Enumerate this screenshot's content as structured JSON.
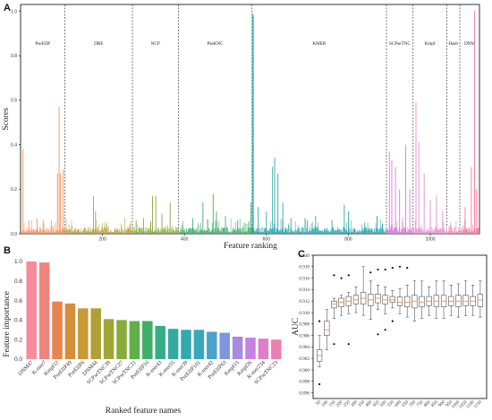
{
  "chart_data": [
    {
      "id": "A",
      "type": "bar",
      "panel_label": "A",
      "xlabel": "Feature ranking",
      "ylabel": "Scores",
      "xlim": [
        0,
        1120
      ],
      "ylim": [
        0,
        1.03
      ],
      "xticks": [
        200,
        400,
        600,
        800,
        1000
      ],
      "yticks": [
        0.0,
        0.2,
        0.4,
        0.6,
        0.8,
        1.0
      ],
      "regions": [
        {
          "name": "PseEIIP",
          "start": 0,
          "end": 108,
          "color": "#f3925a"
        },
        {
          "name": "DBE",
          "start": 108,
          "end": 273,
          "color": "#b6a03a"
        },
        {
          "name": "NCP",
          "start": 273,
          "end": 385,
          "color": "#87a93a"
        },
        {
          "name": "PseKNC",
          "start": 385,
          "end": 565,
          "color": "#3fae6a"
        },
        {
          "name": "KMER",
          "start": 565,
          "end": 893,
          "color": "#2aa8a8"
        },
        {
          "name": "SCPseTNC",
          "start": 893,
          "end": 958,
          "color": "#d978e0"
        },
        {
          "name": "Kmpf",
          "start": 958,
          "end": 1040,
          "color": "#e68ccf"
        },
        {
          "name": "Hash",
          "start": 1040,
          "end": 1072,
          "color": "#ee87b4"
        },
        {
          "name": "DNM",
          "start": 1072,
          "end": 1120,
          "color": "#f27a9f"
        }
      ],
      "peaks": [
        {
          "x": 6,
          "y": 0.38
        },
        {
          "x": 20,
          "y": 0.06
        },
        {
          "x": 40,
          "y": 0.07
        },
        {
          "x": 55,
          "y": 0.06
        },
        {
          "x": 75,
          "y": 0.06
        },
        {
          "x": 90,
          "y": 0.27
        },
        {
          "x": 94,
          "y": 0.57
        },
        {
          "x": 97,
          "y": 0.27
        },
        {
          "x": 104,
          "y": 0.29
        },
        {
          "x": 140,
          "y": 0.02
        },
        {
          "x": 178,
          "y": 0.17
        },
        {
          "x": 183,
          "y": 0.1
        },
        {
          "x": 230,
          "y": 0.02
        },
        {
          "x": 262,
          "y": 0.03
        },
        {
          "x": 282,
          "y": 0.06
        },
        {
          "x": 300,
          "y": 0.07
        },
        {
          "x": 322,
          "y": 0.17
        },
        {
          "x": 330,
          "y": 0.17
        },
        {
          "x": 345,
          "y": 0.09
        },
        {
          "x": 365,
          "y": 0.14
        },
        {
          "x": 395,
          "y": 0.04
        },
        {
          "x": 420,
          "y": 0.07
        },
        {
          "x": 445,
          "y": 0.14
        },
        {
          "x": 470,
          "y": 0.18
        },
        {
          "x": 478,
          "y": 0.1
        },
        {
          "x": 500,
          "y": 0.08
        },
        {
          "x": 530,
          "y": 0.06
        },
        {
          "x": 562,
          "y": 0.14
        },
        {
          "x": 566,
          "y": 0.99
        },
        {
          "x": 568,
          "y": 0.98
        },
        {
          "x": 580,
          "y": 0.12
        },
        {
          "x": 600,
          "y": 0.1
        },
        {
          "x": 615,
          "y": 0.3
        },
        {
          "x": 620,
          "y": 0.34
        },
        {
          "x": 628,
          "y": 0.27
        },
        {
          "x": 640,
          "y": 0.14
        },
        {
          "x": 660,
          "y": 0.07
        },
        {
          "x": 700,
          "y": 0.06
        },
        {
          "x": 720,
          "y": 0.08
        },
        {
          "x": 760,
          "y": 0.06
        },
        {
          "x": 790,
          "y": 0.13
        },
        {
          "x": 800,
          "y": 0.1
        },
        {
          "x": 840,
          "y": 0.05
        },
        {
          "x": 870,
          "y": 0.08
        },
        {
          "x": 900,
          "y": 0.37
        },
        {
          "x": 906,
          "y": 0.33
        },
        {
          "x": 915,
          "y": 0.3
        },
        {
          "x": 925,
          "y": 0.2
        },
        {
          "x": 940,
          "y": 0.4
        },
        {
          "x": 950,
          "y": 0.2
        },
        {
          "x": 965,
          "y": 0.59
        },
        {
          "x": 972,
          "y": 0.41
        },
        {
          "x": 985,
          "y": 0.27
        },
        {
          "x": 1000,
          "y": 0.15
        },
        {
          "x": 1015,
          "y": 0.17
        },
        {
          "x": 1030,
          "y": 0.1
        },
        {
          "x": 1048,
          "y": 0.04
        },
        {
          "x": 1060,
          "y": 0.03
        },
        {
          "x": 1085,
          "y": 0.12
        },
        {
          "x": 1100,
          "y": 0.3
        },
        {
          "x": 1108,
          "y": 1.0
        },
        {
          "x": 1112,
          "y": 0.2
        }
      ]
    },
    {
      "id": "B",
      "type": "bar",
      "panel_label": "B",
      "xlabel": "Ranked feature names",
      "ylabel": "Feature importance",
      "ylim": [
        0,
        1.0
      ],
      "yticks": [
        0.0,
        0.2,
        0.4,
        0.6,
        0.8,
        1.0
      ],
      "categories": [
        "DNM47",
        "K-mer7",
        "Kmpf12",
        "PseEIIP49",
        "PseEIIP6",
        "DNM44",
        "SCPseTNC39",
        "SCPseTNC27",
        "SCPseTNC21",
        "PseEIIP16",
        "K-mer43",
        "K-mer55",
        "K-mer39",
        "PseEIIP101",
        "K-mer42",
        "PseEIIP63",
        "Kmpf15",
        "Kmpf26",
        "K-mer234",
        "SCPseTNC23"
      ],
      "values": [
        1.0,
        0.99,
        0.59,
        0.57,
        0.52,
        0.52,
        0.41,
        0.4,
        0.39,
        0.39,
        0.34,
        0.31,
        0.3,
        0.3,
        0.28,
        0.27,
        0.23,
        0.22,
        0.21,
        0.2
      ],
      "colors": [
        "#f58b9c",
        "#f0837f",
        "#e8834f",
        "#d58e3a",
        "#c79a35",
        "#b2a036",
        "#9fa637",
        "#86ac3b",
        "#5fb049",
        "#3faf6a",
        "#35ad88",
        "#32aa9d",
        "#33a9ac",
        "#38a8bb",
        "#4aa2cd",
        "#7f96dd",
        "#a98ae2",
        "#c682e0",
        "#dd7fcd",
        "#ed7fb4"
      ]
    },
    {
      "id": "C",
      "type": "box",
      "panel_label": "C",
      "ylabel": "AUC",
      "ylim": [
        0.895,
        0.92
      ],
      "yticks": [
        0.896,
        0.898,
        0.9,
        0.902,
        0.904,
        0.906,
        0.908,
        0.91,
        0.912,
        0.914,
        0.916,
        0.918,
        0.92
      ],
      "categories": [
        "50",
        "100",
        "150",
        "200",
        "250",
        "300",
        "350",
        "400",
        "450",
        "500",
        "550",
        "600",
        "650",
        "700",
        "750",
        "800",
        "850",
        "900",
        "950",
        "1000",
        "1050",
        "1100",
        "1150"
      ],
      "boxes": [
        {
          "min": 0.9005,
          "q1": 0.9015,
          "med": 0.9025,
          "q3": 0.9035,
          "max": 0.906,
          "fliers": [
            0.8975,
            0.9085
          ]
        },
        {
          "min": 0.9035,
          "q1": 0.906,
          "med": 0.907,
          "q3": 0.9085,
          "max": 0.9105,
          "fliers": []
        },
        {
          "min": 0.909,
          "q1": 0.9108,
          "med": 0.9115,
          "q3": 0.912,
          "max": 0.9125,
          "fliers": [
            0.9045,
            0.9165
          ]
        },
        {
          "min": 0.9095,
          "q1": 0.911,
          "med": 0.9118,
          "q3": 0.9125,
          "max": 0.913,
          "fliers": [
            0.916
          ]
        },
        {
          "min": 0.9098,
          "q1": 0.9112,
          "med": 0.912,
          "q3": 0.9128,
          "max": 0.9135,
          "fliers": [
            0.9165,
            0.9045
          ]
        },
        {
          "min": 0.91,
          "q1": 0.9115,
          "med": 0.9122,
          "q3": 0.913,
          "max": 0.9145,
          "fliers": []
        },
        {
          "min": 0.9095,
          "q1": 0.9115,
          "med": 0.9125,
          "q3": 0.9135,
          "max": 0.918,
          "fliers": []
        },
        {
          "min": 0.9088,
          "q1": 0.9112,
          "med": 0.9122,
          "q3": 0.9132,
          "max": 0.9155,
          "fliers": [
            0.917
          ]
        },
        {
          "min": 0.9105,
          "q1": 0.9117,
          "med": 0.9125,
          "q3": 0.9132,
          "max": 0.9148,
          "fliers": [
            0.9175,
            0.9062
          ]
        },
        {
          "min": 0.9098,
          "q1": 0.9115,
          "med": 0.9122,
          "q3": 0.913,
          "max": 0.9145,
          "fliers": [
            0.9175,
            0.907
          ]
        },
        {
          "min": 0.9108,
          "q1": 0.9118,
          "med": 0.9122,
          "q3": 0.9128,
          "max": 0.9138,
          "fliers": [
            0.9178,
            0.9085
          ]
        },
        {
          "min": 0.9098,
          "q1": 0.9112,
          "med": 0.9118,
          "q3": 0.9127,
          "max": 0.9142,
          "fliers": [
            0.918
          ]
        },
        {
          "min": 0.9092,
          "q1": 0.911,
          "med": 0.9118,
          "q3": 0.9128,
          "max": 0.9148,
          "fliers": [
            0.9178
          ]
        },
        {
          "min": 0.9085,
          "q1": 0.9108,
          "med": 0.912,
          "q3": 0.913,
          "max": 0.9155,
          "fliers": []
        },
        {
          "min": 0.909,
          "q1": 0.911,
          "med": 0.9118,
          "q3": 0.9128,
          "max": 0.9155,
          "fliers": []
        },
        {
          "min": 0.9095,
          "q1": 0.9112,
          "med": 0.912,
          "q3": 0.9128,
          "max": 0.9145,
          "fliers": []
        },
        {
          "min": 0.909,
          "q1": 0.911,
          "med": 0.912,
          "q3": 0.913,
          "max": 0.9155,
          "fliers": []
        },
        {
          "min": 0.909,
          "q1": 0.911,
          "med": 0.912,
          "q3": 0.913,
          "max": 0.9155,
          "fliers": []
        },
        {
          "min": 0.9095,
          "q1": 0.9112,
          "med": 0.912,
          "q3": 0.9128,
          "max": 0.9148,
          "fliers": []
        },
        {
          "min": 0.9092,
          "q1": 0.911,
          "med": 0.912,
          "q3": 0.913,
          "max": 0.915,
          "fliers": []
        },
        {
          "min": 0.9095,
          "q1": 0.9112,
          "med": 0.912,
          "q3": 0.913,
          "max": 0.9155,
          "fliers": []
        },
        {
          "min": 0.9095,
          "q1": 0.9112,
          "med": 0.912,
          "q3": 0.9128,
          "max": 0.9148,
          "fliers": []
        },
        {
          "min": 0.9092,
          "q1": 0.911,
          "med": 0.9122,
          "q3": 0.9132,
          "max": 0.9155,
          "fliers": []
        }
      ]
    }
  ]
}
